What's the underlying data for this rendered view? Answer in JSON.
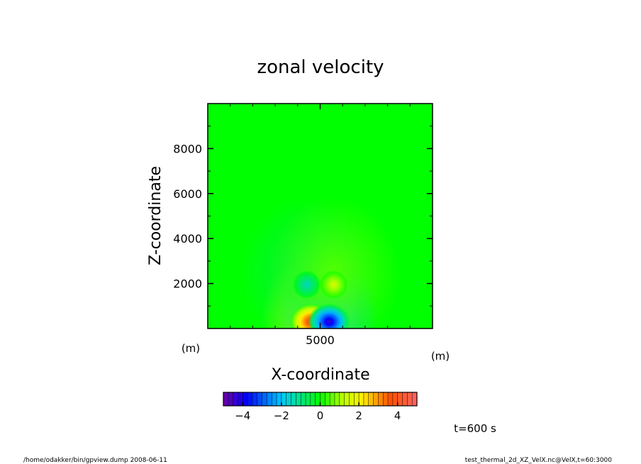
{
  "chart_data": {
    "type": "heatmap",
    "title": "zonal velocity",
    "xlabel": "X-coordinate",
    "ylabel": "Z-coordinate",
    "x_unit": "(m)",
    "y_unit": "(m)",
    "xlim": [
      0,
      10000
    ],
    "ylim": [
      0,
      10000
    ],
    "x_ticks": [
      5000
    ],
    "y_ticks": [
      2000,
      4000,
      6000,
      8000
    ],
    "x_tick_labels": [
      "5000"
    ],
    "y_tick_labels": [
      "2000",
      "4000",
      "6000",
      "8000"
    ],
    "features": [
      {
        "x": 4600,
        "z": 300,
        "value": 4.5
      },
      {
        "x": 5400,
        "z": 300,
        "value": -4.5
      },
      {
        "x": 4400,
        "z": 1950,
        "value": -1.5
      },
      {
        "x": 5600,
        "z": 1950,
        "value": 1.5
      }
    ],
    "colorbar": {
      "range": [
        -5,
        5
      ],
      "ticks": [
        -4,
        -2,
        0,
        2,
        4
      ],
      "tick_labels": [
        "−4",
        "−2",
        "0",
        "2",
        "4"
      ]
    },
    "time_label": "t=600 s",
    "footer_left": "/home/odakker/bin/gpview.dump 2008-06-11",
    "footer_right": "test_thermal_2d_XZ_VelX.nc@VelX,t=60:3000"
  }
}
